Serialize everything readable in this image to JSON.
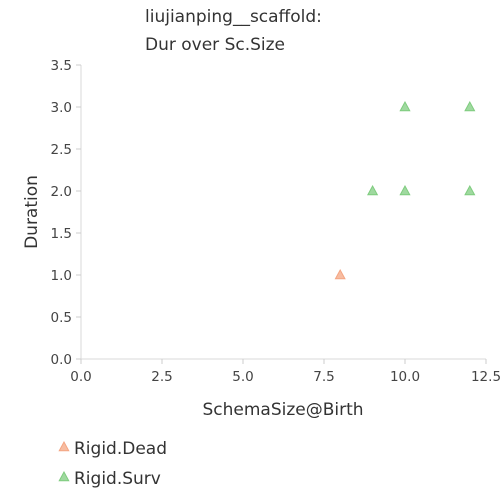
{
  "chart_data": {
    "type": "scatter",
    "title": [
      "liujianping__scaffold:",
      "Dur over Sc.Size"
    ],
    "xlabel": "SchemaSize@Birth",
    "ylabel": "Duration",
    "xlim": [
      0.0,
      12.5
    ],
    "ylim": [
      0.0,
      3.5
    ],
    "xticks": [
      "0.0",
      "2.5",
      "5.0",
      "7.5",
      "10.0",
      "12.5"
    ],
    "yticks": [
      "0.0",
      "0.5",
      "1.0",
      "1.5",
      "2.0",
      "2.5",
      "3.0",
      "3.5"
    ],
    "grid": false,
    "legend_position": "bottom-left",
    "series": [
      {
        "name": "Rigid.Dead",
        "marker": "triangle",
        "color": "#f4a582",
        "points": [
          [
            8,
            1.0
          ]
        ]
      },
      {
        "name": "Rigid.Surv",
        "marker": "triangle",
        "color": "#7fcc7f",
        "points": [
          [
            9,
            2.0
          ],
          [
            10,
            2.0
          ],
          [
            10,
            3.0
          ],
          [
            12,
            2.0
          ],
          [
            12,
            3.0
          ]
        ]
      }
    ]
  }
}
